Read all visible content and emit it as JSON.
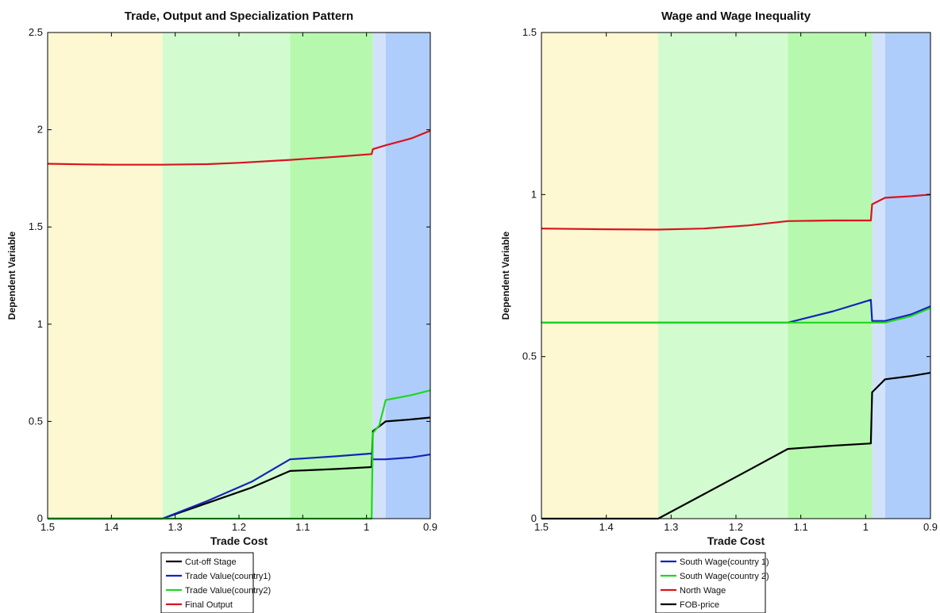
{
  "chart_data": [
    {
      "type": "line",
      "title": "Trade, Output and Specialization Pattern",
      "xlabel": "Trade Cost",
      "ylabel": "Dependent Variable",
      "xlim": [
        1.5,
        0.9
      ],
      "x_reversed": true,
      "ylim": [
        0,
        2.5
      ],
      "xticks": [
        1.5,
        1.4,
        1.3,
        1.2,
        1.1,
        1,
        0.9
      ],
      "yticks": [
        0,
        0.5,
        1,
        1.5,
        2,
        2.5
      ],
      "grid": false,
      "legend_position": "bottom",
      "regions": [
        {
          "from": 1.5,
          "to": 1.32,
          "color": "#fdf8d2"
        },
        {
          "from": 1.32,
          "to": 1.12,
          "color": "#d3fbd0"
        },
        {
          "from": 1.12,
          "to": 0.99,
          "color": "#b6f9ae"
        },
        {
          "from": 0.99,
          "to": 0.97,
          "color": "#d3e2fb"
        },
        {
          "from": 0.97,
          "to": 0.9,
          "color": "#afcdfa"
        }
      ],
      "series": [
        {
          "name": "Cut-off Stage",
          "color": "#000000",
          "points": [
            [
              1.5,
              0
            ],
            [
              1.32,
              0
            ],
            [
              1.25,
              0.08
            ],
            [
              1.18,
              0.16
            ],
            [
              1.12,
              0.245
            ],
            [
              1.05,
              0.255
            ],
            [
              0.992,
              0.265
            ],
            [
              0.99,
              0.45
            ],
            [
              0.97,
              0.5
            ],
            [
              0.93,
              0.51
            ],
            [
              0.9,
              0.52
            ]
          ]
        },
        {
          "name": "Trade Value(country1)",
          "color": "#1424b8",
          "points": [
            [
              1.5,
              0
            ],
            [
              1.32,
              0
            ],
            [
              1.25,
              0.09
            ],
            [
              1.18,
              0.19
            ],
            [
              1.12,
              0.305
            ],
            [
              1.05,
              0.32
            ],
            [
              0.992,
              0.335
            ],
            [
              0.99,
              0.305
            ],
            [
              0.97,
              0.305
            ],
            [
              0.93,
              0.315
            ],
            [
              0.9,
              0.33
            ]
          ]
        },
        {
          "name": "Trade Value(country2)",
          "color": "#1ed81e",
          "points": [
            [
              1.5,
              0
            ],
            [
              0.992,
              0
            ],
            [
              0.99,
              0.44
            ],
            [
              0.98,
              0.48
            ],
            [
              0.97,
              0.61
            ],
            [
              0.93,
              0.635
            ],
            [
              0.9,
              0.66
            ]
          ]
        },
        {
          "name": "Final Output",
          "color": "#d8141e",
          "points": [
            [
              1.5,
              1.825
            ],
            [
              1.45,
              1.822
            ],
            [
              1.4,
              1.82
            ],
            [
              1.32,
              1.82
            ],
            [
              1.25,
              1.823
            ],
            [
              1.2,
              1.83
            ],
            [
              1.12,
              1.845
            ],
            [
              1.05,
              1.86
            ],
            [
              0.992,
              1.875
            ],
            [
              0.99,
              1.9
            ],
            [
              0.97,
              1.92
            ],
            [
              0.93,
              1.955
            ],
            [
              0.9,
              1.995
            ]
          ]
        }
      ]
    },
    {
      "type": "line",
      "title": "Wage and Wage Inequality",
      "xlabel": "Trade Cost",
      "ylabel": "Dependent Variable",
      "xlim": [
        1.5,
        0.9
      ],
      "x_reversed": true,
      "ylim": [
        0,
        1.5
      ],
      "xticks": [
        1.5,
        1.4,
        1.3,
        1.2,
        1.1,
        1,
        0.9
      ],
      "yticks": [
        0,
        0.5,
        1,
        1.5
      ],
      "grid": false,
      "legend_position": "bottom",
      "regions": [
        {
          "from": 1.5,
          "to": 1.32,
          "color": "#fdf8d2"
        },
        {
          "from": 1.32,
          "to": 1.12,
          "color": "#d3fbd0"
        },
        {
          "from": 1.12,
          "to": 0.99,
          "color": "#b6f9ae"
        },
        {
          "from": 0.99,
          "to": 0.97,
          "color": "#d3e2fb"
        },
        {
          "from": 0.97,
          "to": 0.9,
          "color": "#afcdfa"
        }
      ],
      "series": [
        {
          "name": "South Wage(country 1)",
          "color": "#1424b8",
          "points": [
            [
              1.5,
              0.605
            ],
            [
              1.12,
              0.605
            ],
            [
              1.05,
              0.64
            ],
            [
              0.992,
              0.675
            ],
            [
              0.99,
              0.61
            ],
            [
              0.97,
              0.61
            ],
            [
              0.93,
              0.63
            ],
            [
              0.9,
              0.655
            ]
          ]
        },
        {
          "name": "South Wage(country 2)",
          "color": "#1ed81e",
          "points": [
            [
              1.5,
              0.605
            ],
            [
              0.97,
              0.605
            ],
            [
              0.93,
              0.625
            ],
            [
              0.9,
              0.65
            ]
          ]
        },
        {
          "name": "North Wage",
          "color": "#d8141e",
          "points": [
            [
              1.5,
              0.895
            ],
            [
              1.4,
              0.893
            ],
            [
              1.32,
              0.892
            ],
            [
              1.25,
              0.895
            ],
            [
              1.18,
              0.905
            ],
            [
              1.12,
              0.918
            ],
            [
              1.05,
              0.92
            ],
            [
              0.992,
              0.92
            ],
            [
              0.99,
              0.97
            ],
            [
              0.97,
              0.99
            ],
            [
              0.93,
              0.995
            ],
            [
              0.9,
              1.0
            ]
          ]
        },
        {
          "name": "FOB-price",
          "color": "#000000",
          "points": [
            [
              1.5,
              0
            ],
            [
              1.32,
              0
            ],
            [
              1.25,
              0.075
            ],
            [
              1.18,
              0.15
            ],
            [
              1.12,
              0.215
            ],
            [
              1.05,
              0.225
            ],
            [
              0.992,
              0.232
            ],
            [
              0.99,
              0.39
            ],
            [
              0.97,
              0.43
            ],
            [
              0.93,
              0.44
            ],
            [
              0.9,
              0.45
            ]
          ]
        }
      ]
    }
  ]
}
